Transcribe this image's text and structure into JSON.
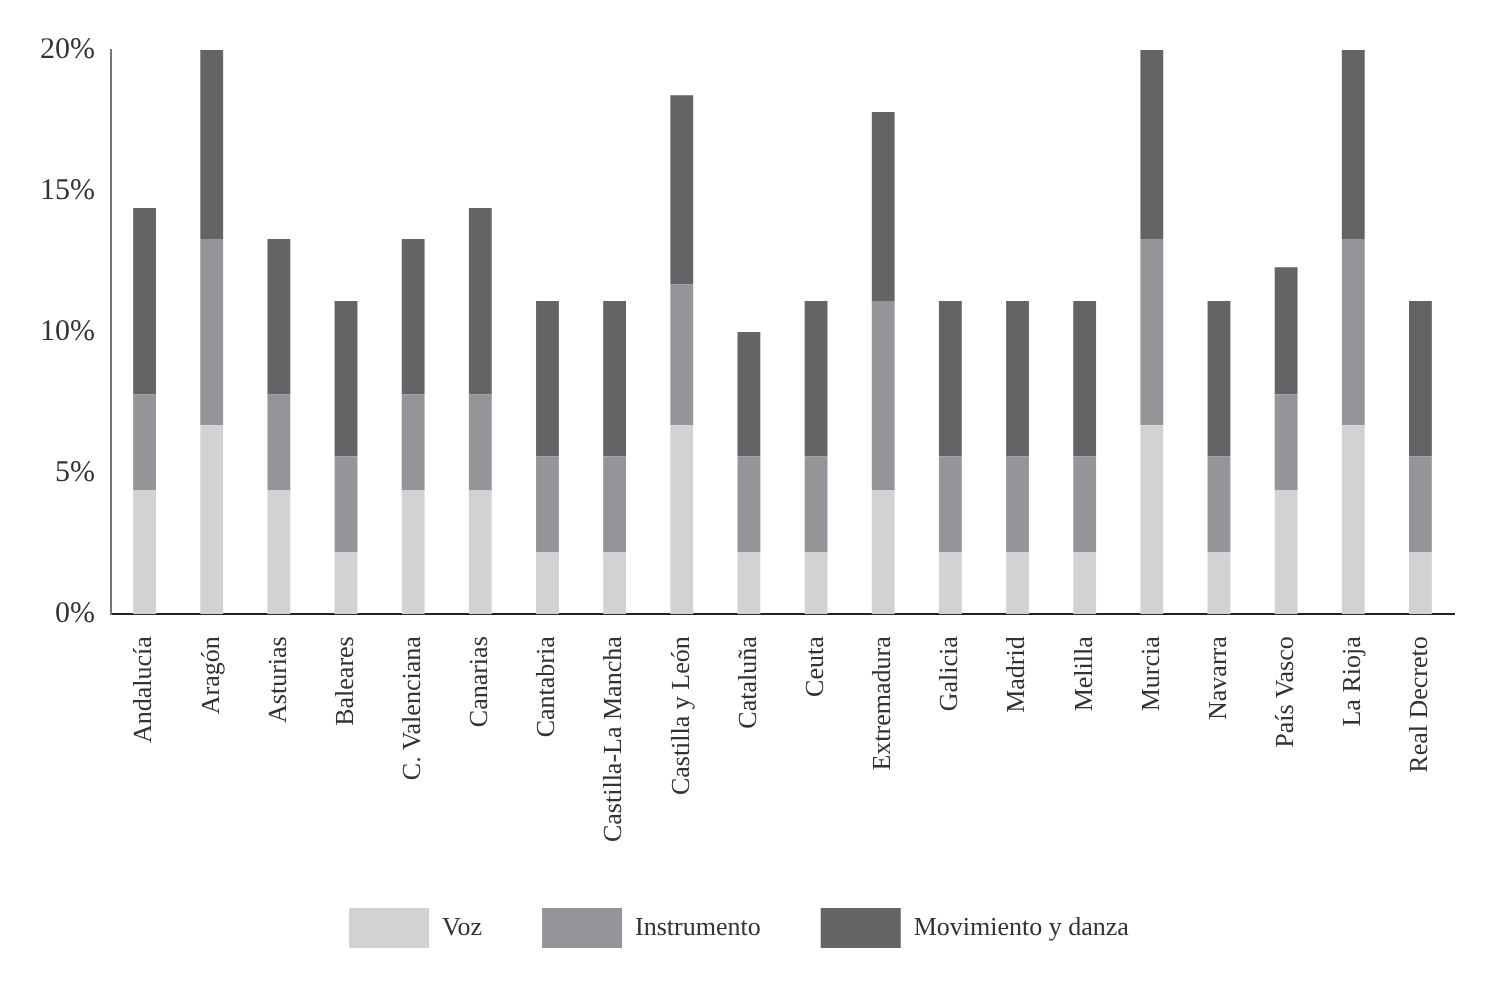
{
  "chart_data": {
    "type": "bar",
    "stacked": true,
    "categories": [
      "Andalucía",
      "Aragón",
      "Asturias",
      "Baleares",
      "C. Valenciana",
      "Canarias",
      "Cantabria",
      "Castilla-La Mancha",
      "Castilla y León",
      "Cataluña",
      "Ceuta",
      "Extremadura",
      "Galicia",
      "Madrid",
      "Melilla",
      "Murcia",
      "Navarra",
      "País Vasco",
      "La Rioja",
      "Real Decreto"
    ],
    "series": [
      {
        "name": "Voz",
        "color": "#d1d2d4",
        "values": [
          4.4,
          6.7,
          4.4,
          2.2,
          4.4,
          4.4,
          2.2,
          2.2,
          6.7,
          2.2,
          2.2,
          4.4,
          2.2,
          2.2,
          2.2,
          6.7,
          2.2,
          4.4,
          6.7,
          2.2
        ]
      },
      {
        "name": "Instrumento",
        "color": "#939598",
        "values": [
          3.4,
          6.6,
          3.4,
          3.4,
          3.4,
          3.4,
          3.4,
          3.4,
          5.0,
          3.4,
          3.4,
          6.7,
          3.4,
          3.4,
          3.4,
          6.6,
          3.4,
          3.4,
          6.6,
          3.4
        ]
      },
      {
        "name": "Movimiento y danza",
        "color": "#636466",
        "values": [
          6.6,
          6.7,
          5.5,
          5.5,
          5.5,
          6.6,
          5.5,
          5.5,
          6.7,
          4.4,
          5.5,
          6.7,
          5.5,
          5.5,
          5.5,
          6.7,
          5.5,
          4.5,
          6.7,
          5.5
        ]
      }
    ],
    "ylim": [
      0,
      20
    ],
    "yticks": [
      {
        "value": 0,
        "label": "0%"
      },
      {
        "value": 5,
        "label": "5%"
      },
      {
        "value": 10,
        "label": "10%"
      },
      {
        "value": 15,
        "label": "15%"
      },
      {
        "value": 20,
        "label": "20%"
      }
    ],
    "grid": false,
    "legend": "bottom"
  }
}
